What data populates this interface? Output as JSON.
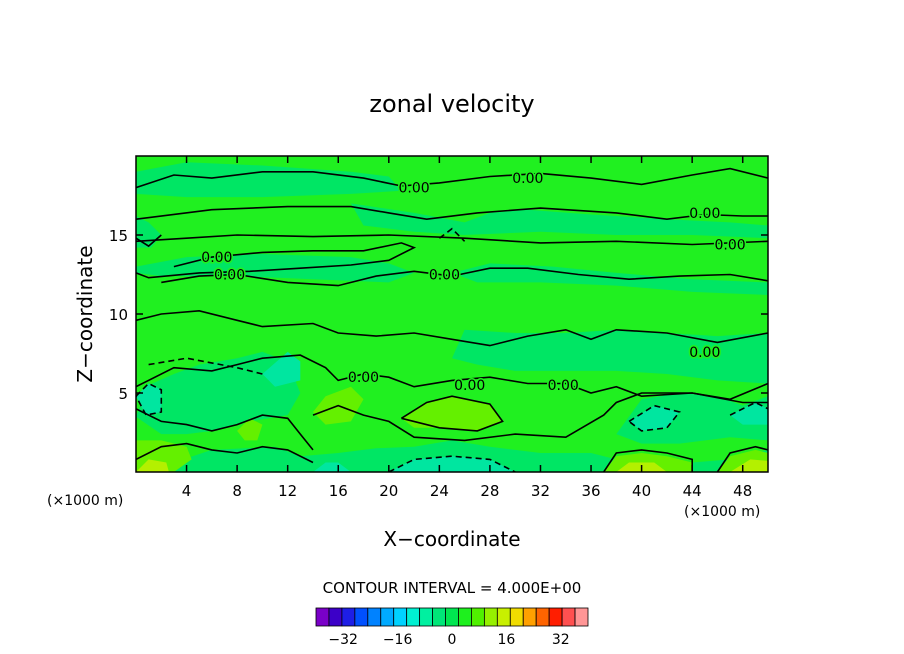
{
  "chart_data": {
    "type": "contour",
    "title": "zonal velocity",
    "xlabel": "X−coordinate",
    "ylabel": "Z−coordinate",
    "x_unit_left": "(×1000 m)",
    "x_unit_right": "(×1000 m)",
    "xlim": [
      0,
      50
    ],
    "ylim": [
      0,
      20
    ],
    "x_ticks": [
      4,
      8,
      12,
      16,
      20,
      24,
      28,
      32,
      36,
      40,
      44,
      48
    ],
    "y_ticks": [
      5,
      10,
      15
    ],
    "contour_interval_text": "CONTOUR INTERVAL = 4.000E+00",
    "contour_labels": [
      {
        "x": 22.0,
        "y": 18.0,
        "text": "0.00"
      },
      {
        "x": 31.0,
        "y": 18.6,
        "text": "0.00"
      },
      {
        "x": 45.0,
        "y": 16.4,
        "text": "0.00"
      },
      {
        "x": 47.0,
        "y": 14.4,
        "text": "0.00"
      },
      {
        "x": 6.4,
        "y": 13.6,
        "text": "0.00"
      },
      {
        "x": 7.4,
        "y": 12.5,
        "text": "0.00"
      },
      {
        "x": 24.4,
        "y": 12.5,
        "text": "0.00"
      },
      {
        "x": 45.0,
        "y": 7.6,
        "text": "0.00"
      },
      {
        "x": 18.0,
        "y": 6.0,
        "text": "0.00"
      },
      {
        "x": 26.4,
        "y": 5.5,
        "text": "0.00"
      },
      {
        "x": 33.8,
        "y": 5.5,
        "text": "0.00"
      }
    ],
    "colorbar": {
      "levels": [
        -40,
        -36,
        -32,
        -28,
        -24,
        -20,
        -16,
        -12,
        -8,
        -4,
        0,
        4,
        8,
        12,
        16,
        20,
        24,
        28,
        32,
        36,
        40
      ],
      "tick_labels": [
        "−32",
        "−16",
        "0",
        "16",
        "32"
      ],
      "tick_values": [
        -32,
        -16,
        0,
        16,
        32
      ],
      "colors": [
        "#7a00c8",
        "#3c00c8",
        "#1e1ee6",
        "#0050ff",
        "#0082ff",
        "#00aaff",
        "#00d2ff",
        "#00f0d2",
        "#00f0a0",
        "#00e678",
        "#00e650",
        "#1ef01e",
        "#50f000",
        "#96f000",
        "#c8f000",
        "#f0dc00",
        "#ffa000",
        "#ff6400",
        "#ff1e00",
        "#ff5050",
        "#ff9696"
      ]
    },
    "field_colors": {
      "zero": "#20f020",
      "neg4": "#00e664",
      "neg8": "#00e6a0",
      "pos4": "#64f000",
      "pos8": "#b4f000"
    }
  }
}
